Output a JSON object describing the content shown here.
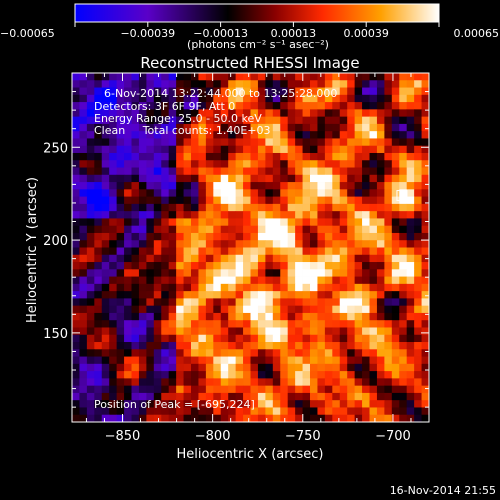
{
  "chart_data": {
    "type": "heatmap",
    "title": "Reconstructed RHESSI Image",
    "xlabel": "Heliocentric X (arcsec)",
    "ylabel": "Heliocentric Y (arcsec)",
    "xlim": [
      -878,
      -680
    ],
    "ylim": [
      102,
      290
    ],
    "x_ticks": [
      -850,
      -800,
      -750,
      -700
    ],
    "x_tick_labels": [
      "−850",
      "−800",
      "−750",
      "−700"
    ],
    "y_ticks": [
      150,
      200,
      250
    ],
    "y_tick_labels": [
      "150",
      "200",
      "250"
    ],
    "colorbar": {
      "min": -0.00065,
      "max": 0.00065,
      "ticks": [
        -0.00065,
        -0.00039,
        -0.00013,
        0.00013,
        0.00039,
        0.00065
      ],
      "tick_labels": [
        "−0.00065",
        "−0.00039",
        "−0.00013",
        "0.00013",
        "0.00039",
        "0.00065"
      ],
      "units": "(photons cm⁻² s⁻¹ asec⁻²)",
      "colormap": [
        "#0000ff",
        "#5a00c8",
        "#000000",
        "#8a0000",
        "#ff2a00",
        "#ffa000",
        "#ffffff"
      ]
    },
    "annotations": [
      "6-Nov-2014 13:22:44.000 to 13:25:28.000",
      "Detectors: 3F 6F 9F, Att 0",
      "Energy Range: 25.0 - 50.0 keV",
      "Clean     Total counts: 1.40E+03",
      "Position of Peak = [-695,224]"
    ],
    "peak": {
      "x": -695,
      "y": 224
    },
    "grid": false,
    "legend": "none"
  },
  "footer": {
    "timestamp": "16-Nov-2014 21:55"
  }
}
